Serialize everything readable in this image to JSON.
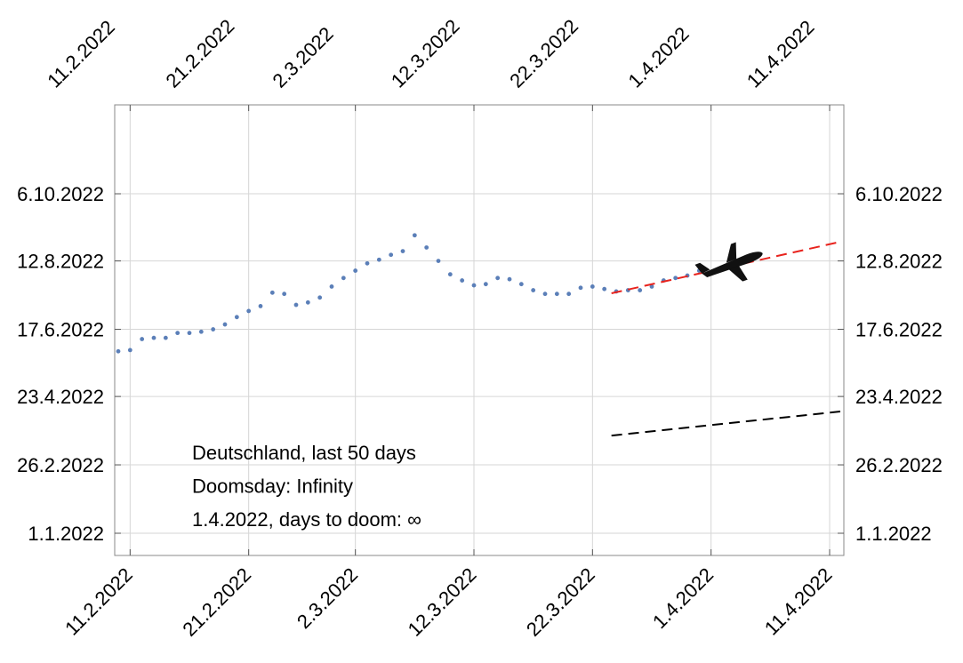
{
  "chart_data": {
    "type": "scatter",
    "annotations": [
      "Deutschland, last 50 days",
      "Doomsday: Infinity",
      "1.4.2022, days to doom: ∞"
    ],
    "xlim": [
      40.7,
      102.2
    ],
    "xticks": [
      {
        "value": 42,
        "label": "11.2.2022"
      },
      {
        "value": 52,
        "label": "21.2.2022"
      },
      {
        "value": 61,
        "label": "2.3.2022"
      },
      {
        "value": 71,
        "label": "12.3.2022"
      },
      {
        "value": 81,
        "label": "22.3.2022"
      },
      {
        "value": 91,
        "label": "1.4.2022"
      },
      {
        "value": 101,
        "label": "11.4.2022"
      }
    ],
    "ylim": [
      -17.2,
      351.8
    ],
    "yticks": [
      {
        "value": 1,
        "label": "1.1.2022"
      },
      {
        "value": 57,
        "label": "26.2.2022"
      },
      {
        "value": 113,
        "label": "23.4.2022"
      },
      {
        "value": 168,
        "label": "17.6.2022"
      },
      {
        "value": 224,
        "label": "12.8.2022"
      },
      {
        "value": 279,
        "label": "6.10.2022"
      }
    ],
    "grid": true,
    "series": [
      {
        "color": "#5b7fb8",
        "style": "dots",
        "x": [
          41,
          42,
          43,
          44,
          45,
          46,
          47,
          48,
          49,
          50,
          51,
          52,
          53,
          54,
          55,
          56,
          57,
          58,
          59,
          60,
          61,
          62,
          63,
          64,
          65,
          66,
          67,
          68,
          69,
          70,
          71,
          72,
          73,
          74,
          75,
          76,
          77,
          78,
          79,
          80,
          81,
          82,
          83,
          84,
          85,
          86,
          87,
          88,
          89,
          90
        ],
        "values": [
          150,
          151,
          160,
          161,
          161,
          165,
          165,
          166,
          168,
          172,
          178,
          183,
          187,
          198,
          197,
          188,
          190,
          194,
          203,
          210,
          216,
          222,
          225,
          229,
          232,
          245,
          235,
          224,
          213,
          208,
          204,
          205,
          210,
          209,
          205,
          200,
          197,
          197,
          197,
          202,
          203,
          201,
          199,
          200,
          200,
          203,
          208,
          210,
          212,
          216
        ]
      },
      {
        "color": "#e8231d",
        "style": "dashed",
        "x": [
          82.6,
          101.6
        ],
        "values": [
          197.5,
          239
        ]
      },
      {
        "color": "#000000",
        "style": "dashed",
        "x": [
          82.6,
          101.9
        ],
        "values": [
          81,
          100.7
        ]
      }
    ]
  }
}
